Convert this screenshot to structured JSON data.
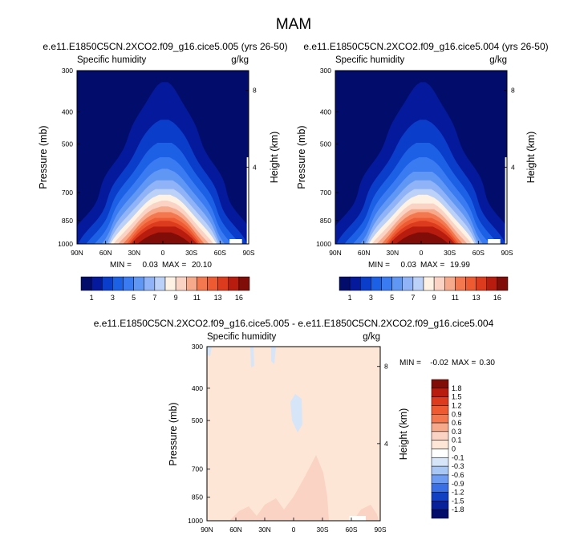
{
  "season_title": "MAM",
  "chart_data": [
    {
      "type": "contour",
      "title": "e.e11.E1850C5CN.2XCO2.f09_g16.cice5.005 (yrs 26-50)",
      "variable": "Specific humidity",
      "units": "g/kg",
      "xlabel": "",
      "ylabel": "Pressure (mb)",
      "right_label": "Height (km)",
      "x_ticks": [
        "90N",
        "60N",
        "30N",
        "0",
        "30S",
        "60S",
        "90S"
      ],
      "x_range": [
        90,
        -90
      ],
      "y_ticks": [
        "300",
        "400",
        "500",
        "700",
        "850",
        "1000"
      ],
      "y_range": [
        1000,
        300
      ],
      "height_ticks": [
        "8",
        "4"
      ],
      "stats": {
        "min_label": "MIN =",
        "min": "0.03",
        "max_label": "MAX =",
        "max": "20.10"
      },
      "peak_lat": -2,
      "peak_value": 20.1,
      "colorbar_labels": [
        "1",
        "3",
        "5",
        "7",
        "9",
        "11",
        "13",
        "16"
      ],
      "colorbar_colors": [
        "#020d6b",
        "#05199c",
        "#0a3dc9",
        "#1c60e6",
        "#3a7bf2",
        "#6097f5",
        "#8fb3f6",
        "#bcd1f8",
        "#fdf2e4",
        "#fad3c4",
        "#f7aa8b",
        "#f3784f",
        "#ee5a31",
        "#dd3b1d",
        "#b71c0e",
        "#800d07"
      ],
      "contour_levels": [
        1,
        2,
        3,
        4,
        5,
        6,
        7,
        8,
        9,
        10,
        11,
        12,
        13,
        14,
        16
      ]
    },
    {
      "type": "contour",
      "title": "e.e11.E1850C5CN.2XCO2.f09_g16.cice5.004 (yrs 26-50)",
      "variable": "Specific humidity",
      "units": "g/kg",
      "xlabel": "",
      "ylabel": "Pressure (mb)",
      "right_label": "Height (km)",
      "x_ticks": [
        "90N",
        "60N",
        "30N",
        "0",
        "30S",
        "60S",
        "90S"
      ],
      "x_range": [
        90,
        -90
      ],
      "y_ticks": [
        "300",
        "400",
        "500",
        "700",
        "850",
        "1000"
      ],
      "y_range": [
        1000,
        300
      ],
      "height_ticks": [
        "8",
        "4"
      ],
      "stats": {
        "min_label": "MIN =",
        "min": "0.03",
        "max_label": "MAX =",
        "max": "19.99"
      },
      "peak_lat": -2,
      "peak_value": 19.99,
      "colorbar_labels": [
        "1",
        "3",
        "5",
        "7",
        "9",
        "11",
        "13",
        "16"
      ],
      "colorbar_colors": [
        "#020d6b",
        "#05199c",
        "#0a3dc9",
        "#1c60e6",
        "#3a7bf2",
        "#6097f5",
        "#8fb3f6",
        "#bcd1f8",
        "#fdf2e4",
        "#fad3c4",
        "#f7aa8b",
        "#f3784f",
        "#ee5a31",
        "#dd3b1d",
        "#b71c0e",
        "#800d07"
      ],
      "contour_levels": [
        1,
        2,
        3,
        4,
        5,
        6,
        7,
        8,
        9,
        10,
        11,
        12,
        13,
        14,
        16
      ]
    },
    {
      "type": "contour",
      "title": "e.e11.E1850C5CN.2XCO2.f09_g16.cice5.005 - e.e11.E1850C5CN.2XCO2.f09_g16.cice5.004",
      "variable": "Specific humidity",
      "units": "g/kg",
      "xlabel": "",
      "ylabel": "Pressure (mb)",
      "right_label": "Height (km)",
      "x_ticks": [
        "90N",
        "60N",
        "30N",
        "0",
        "30S",
        "60S",
        "90S"
      ],
      "x_range": [
        90,
        -90
      ],
      "y_ticks": [
        "300",
        "400",
        "500",
        "700",
        "850",
        "1000"
      ],
      "y_range": [
        1000,
        300
      ],
      "height_ticks": [
        "8",
        "4"
      ],
      "stats": {
        "min_label": "MIN =",
        "min": "-0.02",
        "max_label": "MAX =",
        "max": "0.30"
      },
      "background_value": 0.05,
      "colorbar_labels": [
        "1.8",
        "1.5",
        "1.2",
        "0.9",
        "0.6",
        "0.3",
        "0.1",
        "0",
        "-0.1",
        "-0.3",
        "-0.6",
        "-0.9",
        "-1.2",
        "-1.5",
        "-1.8"
      ],
      "colorbar_colors": [
        "#800d07",
        "#b71c0e",
        "#dd3b1d",
        "#ee5a31",
        "#f3784f",
        "#f7aa8b",
        "#fad3c4",
        "#fde6d6",
        "#ffffff",
        "#d6e6f8",
        "#a9c7f5",
        "#6f9cf3",
        "#3a6fe6",
        "#1240c3",
        "#08209a",
        "#020d6b"
      ]
    }
  ]
}
